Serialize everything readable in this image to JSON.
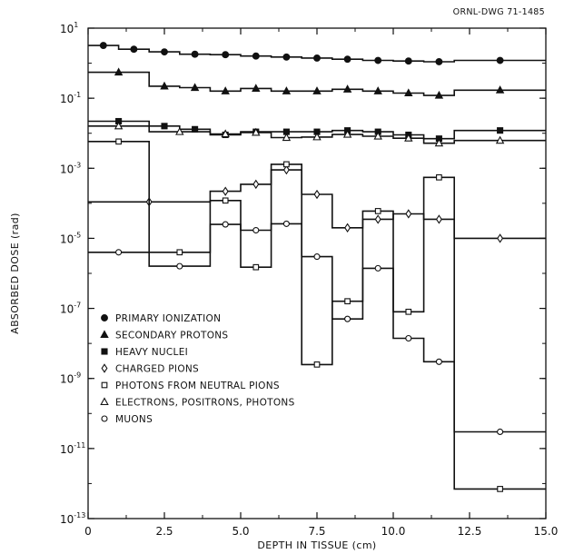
{
  "drawing_number": "ORNL-DWG 71-1485",
  "chart_data": {
    "type": "line",
    "step": true,
    "title": "",
    "xlabel": "DEPTH IN TISSUE (cm)",
    "ylabel": "ABSORBED DOSE (rad)",
    "xlim": [
      0,
      15
    ],
    "ylim": [
      1e-13,
      10
    ],
    "y_scale": "log",
    "grid": false,
    "x_ticks": [
      {
        "value": 0,
        "label": "0"
      },
      {
        "value": 2.5,
        "label": "2.5"
      },
      {
        "value": 5,
        "label": "5.0"
      },
      {
        "value": 7.5,
        "label": "7.5"
      },
      {
        "value": 10,
        "label": "10.0"
      },
      {
        "value": 12.5,
        "label": "12.5"
      },
      {
        "value": 15,
        "label": "15.0"
      }
    ],
    "y_ticks": [
      {
        "value": 10,
        "exp": "1"
      },
      {
        "value": 0.1,
        "exp": "-1"
      },
      {
        "value": 0.001,
        "exp": "-3"
      },
      {
        "value": 1e-05,
        "exp": "-5"
      },
      {
        "value": 1e-07,
        "exp": "-7"
      },
      {
        "value": 1e-09,
        "exp": "-9"
      },
      {
        "value": 1e-11,
        "exp": "-11"
      },
      {
        "value": 1e-13,
        "exp": "-13"
      }
    ],
    "legend_position": "lower-left",
    "series": [
      {
        "name": "PRIMARY IONIZATION",
        "marker": "filled-circle",
        "edges": [
          0,
          1,
          2,
          3,
          4,
          5,
          6,
          7,
          8,
          9,
          10,
          11,
          12,
          15
        ],
        "values": [
          3.2,
          2.5,
          2.1,
          1.8,
          1.75,
          1.6,
          1.5,
          1.4,
          1.3,
          1.2,
          1.15,
          1.1,
          1.2
        ]
      },
      {
        "name": "SECONDARY PROTONS",
        "marker": "filled-triangle",
        "edges": [
          0,
          2,
          3,
          4,
          5,
          6,
          7,
          8,
          9,
          10,
          11,
          12,
          15
        ],
        "values": [
          0.55,
          0.22,
          0.2,
          0.16,
          0.19,
          0.16,
          0.16,
          0.18,
          0.16,
          0.14,
          0.12,
          0.17
        ]
      },
      {
        "name": "HEAVY NUCLEI",
        "marker": "filled-square",
        "edges": [
          0,
          2,
          3,
          4,
          5,
          6,
          7,
          8,
          9,
          10,
          11,
          12,
          15
        ],
        "values": [
          0.022,
          0.016,
          0.013,
          0.009,
          0.011,
          0.011,
          0.011,
          0.012,
          0.011,
          0.009,
          0.007,
          0.012
        ]
      },
      {
        "name": "CHARGED PIONS",
        "marker": "open-diamond",
        "edges": [
          0,
          4,
          5,
          6,
          7,
          8,
          9,
          10,
          11,
          12,
          15
        ],
        "values": [
          0.00011,
          0.00022,
          0.00035,
          0.0009,
          0.00018,
          2e-05,
          3.5e-05,
          5e-05,
          3.5e-05,
          1e-05
        ]
      },
      {
        "name": "PHOTONS FROM NEUTRAL PIONS",
        "marker": "open-square",
        "edges": [
          0,
          2,
          4,
          5,
          6,
          7,
          8,
          9,
          10,
          11,
          12,
          15
        ],
        "values": [
          0.0058,
          4e-06,
          0.00012,
          1.5e-06,
          0.0013,
          2.5e-09,
          1.6e-07,
          6e-05,
          8e-08,
          0.00055,
          7e-13
        ]
      },
      {
        "name": "ELECTRONS, POSITRONS, PHOTONS",
        "marker": "open-triangle",
        "edges": [
          0,
          2,
          4,
          5,
          6,
          7,
          8,
          9,
          10,
          11,
          12,
          15
        ],
        "values": [
          0.016,
          0.011,
          0.0095,
          0.0105,
          0.0075,
          0.0078,
          0.0092,
          0.0082,
          0.0072,
          0.0052,
          0.0062
        ]
      },
      {
        "name": "MUONS",
        "marker": "open-circle",
        "edges": [
          0,
          2,
          4,
          5,
          6,
          7,
          8,
          9,
          10,
          11,
          12,
          15
        ],
        "values": [
          4e-06,
          1.6e-06,
          2.5e-05,
          1.7e-05,
          2.6e-05,
          3e-06,
          5e-08,
          1.4e-06,
          1.4e-08,
          3e-09,
          3e-11
        ]
      }
    ]
  }
}
